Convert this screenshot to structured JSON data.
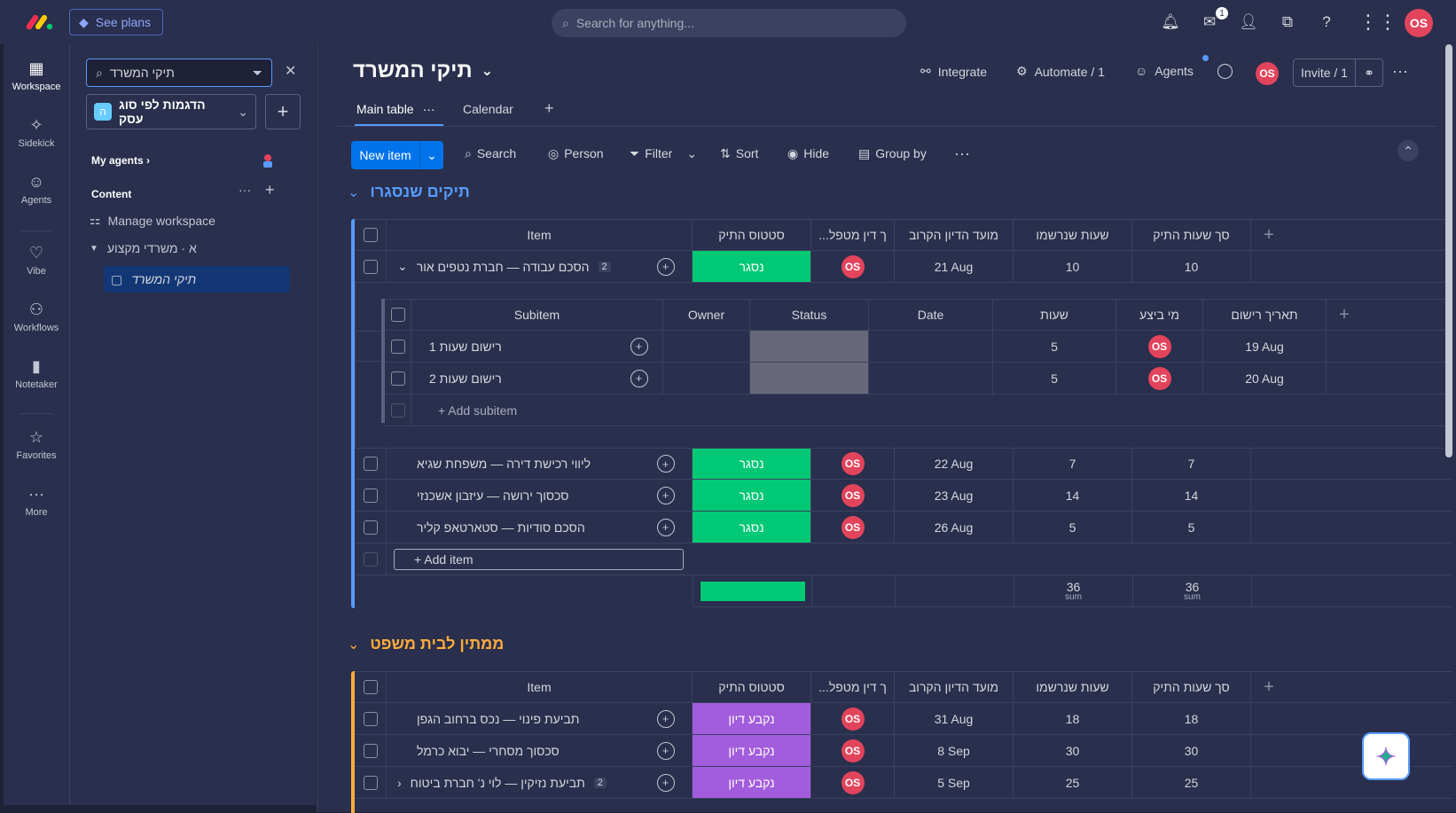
{
  "topbar": {
    "see_plans": "See plans",
    "search_placeholder": "Search for anything...",
    "inbox_badge": "1",
    "avatar": "OS"
  },
  "rail": {
    "items": [
      "Workspace",
      "Sidekick",
      "Agents",
      "Vibe",
      "Workflows",
      "Notetaker",
      "Favorites",
      "More"
    ]
  },
  "sidebar": {
    "search_value": "תיקי המשרד",
    "workspace_badge": "ה",
    "workspace_name": "הדגמות לפי סוג עסק",
    "my_agents": "My agents",
    "content": "Content",
    "manage_workspace": "Manage workspace",
    "folder": "א · משרדי מקצוע",
    "board_item": "תיקי המשרד"
  },
  "board": {
    "title": "תיקי המשרד",
    "integrate": "Integrate",
    "automate": "Automate / 1",
    "agents": "Agents",
    "invite": "Invite / 1",
    "tabs": [
      "Main table",
      "Calendar"
    ],
    "toolbar": {
      "new_item": "New item",
      "search": "Search",
      "person": "Person",
      "filter": "Filter",
      "sort": "Sort",
      "hide": "Hide",
      "group_by": "Group by"
    },
    "columns": [
      "Item",
      "סטטוס התיק",
      "...ך דין מטפל",
      "מועד הדיון הקרוב",
      "שעות שנרשמו",
      "סך שעות התיק"
    ],
    "groups": [
      {
        "title": "תיקים שנסגרו",
        "color": "#579bfc",
        "rows": [
          {
            "name": "הסכם עבודה — חברת נטפים אור",
            "subcount": "2",
            "status": "נסגר",
            "owner": "OS",
            "date": "21 Aug",
            "hours": "10",
            "total": "10"
          },
          {
            "name": "ליווי רכישת דירה — משפחת שגיא",
            "status": "נסגר",
            "owner": "OS",
            "date": "22 Aug",
            "hours": "7",
            "total": "7"
          },
          {
            "name": "סכסוך ירושה — עיזבון אשכנזי",
            "status": "נסגר",
            "owner": "OS",
            "date": "23 Aug",
            "hours": "14",
            "total": "14"
          },
          {
            "name": "הסכם סודיות — סטארטאפ קליר",
            "status": "נסגר",
            "owner": "OS",
            "date": "26 Aug",
            "hours": "5",
            "total": "5"
          }
        ],
        "add_item": "+ Add item",
        "sum_hours": "36",
        "sum_total": "36",
        "sum_label": "sum"
      },
      {
        "title": "ממתין לבית משפט",
        "color": "#fdab3d",
        "rows": [
          {
            "name": "תביעת פינוי — נכס ברחוב הגפן",
            "status": "נקבע דיון",
            "owner": "OS",
            "date": "31 Aug",
            "hours": "18",
            "total": "18"
          },
          {
            "name": "סכסוך מסחרי — יבוא כרמל",
            "status": "נקבע דיון",
            "owner": "OS",
            "date": "8 Sep",
            "hours": "30",
            "total": "30"
          },
          {
            "name": "תביעת נזיקין — לוי נ' חברת ביטוח",
            "subcount": "2",
            "status": "נקבע דיון",
            "owner": "OS",
            "date": "5 Sep",
            "hours": "25",
            "total": "25"
          }
        ]
      }
    ],
    "subitems": {
      "columns": [
        "Subitem",
        "Owner",
        "Status",
        "Date",
        "שעות",
        "מי ביצע",
        "תאריך רישום"
      ],
      "rows": [
        {
          "name": "רישום שעות 1",
          "hours": "5",
          "who": "OS",
          "date": "19 Aug"
        },
        {
          "name": "רישום שעות 2",
          "hours": "5",
          "who": "OS",
          "date": "20 Aug"
        }
      ],
      "add": "+ Add subitem"
    }
  }
}
